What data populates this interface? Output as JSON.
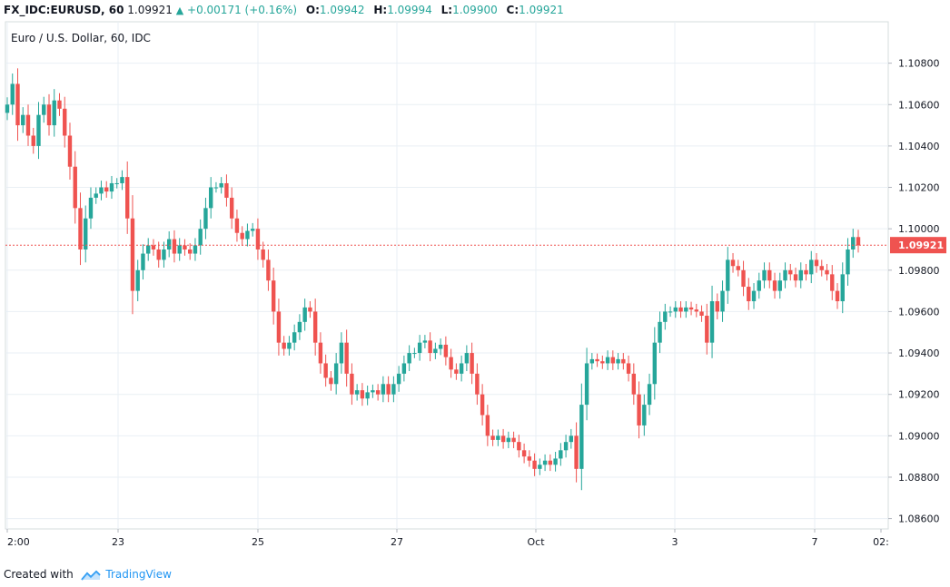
{
  "header": {
    "symbol": "FX_IDC:EURUSD, 60",
    "last": "1.09921",
    "change": "+0.00171 (+0.16%)",
    "o_label": "O:",
    "o_val": "1.09942",
    "h_label": "H:",
    "h_val": "1.09994",
    "l_label": "L:",
    "l_val": "1.09900",
    "c_label": "C:",
    "c_val": "1.09921"
  },
  "footer": {
    "created_with": "Created with",
    "brand": "TradingView"
  },
  "colors": {
    "up": "#26a69a",
    "down": "#ef5350",
    "price_line": "#ef5350",
    "grid": "#e9eff4"
  },
  "chart_data": {
    "type": "candlestick",
    "title": "Euro / U.S. Dollar, 60, IDC",
    "ylim": [
      1.0855,
      1.11
    ],
    "y_ticks": [
      "1.10800",
      "1.10600",
      "1.10400",
      "1.10200",
      "1.10000",
      "1.09800",
      "1.09600",
      "1.09400",
      "1.09200",
      "1.09000",
      "1.08800",
      "1.08600"
    ],
    "x_ticks": [
      "2:00",
      "23",
      "25",
      "27",
      "Oct",
      "3",
      "7",
      "02:"
    ],
    "last_price": "1.09921",
    "grid": true,
    "series": [
      {
        "closes": [
          1.106,
          1.107,
          1.105,
          1.1055,
          1.1045,
          1.104,
          1.1055,
          1.106,
          1.105,
          1.1062,
          1.1058,
          1.1045,
          1.103,
          1.101,
          1.099,
          1.1005,
          1.1015,
          1.1017,
          1.102,
          1.1018,
          1.1022,
          1.1022,
          1.1025,
          1.1005,
          1.097,
          1.098,
          1.0988,
          1.0992,
          1.099,
          1.0985,
          1.099,
          1.0995,
          1.0988,
          1.0992,
          1.099,
          1.0988,
          1.0992,
          1.1,
          1.101,
          1.102,
          1.102,
          1.1022,
          1.1015,
          1.1005,
          1.0998,
          1.0995,
          1.0999,
          1.1,
          1.099,
          1.0985,
          1.0975,
          1.096,
          1.0945,
          1.0942,
          1.0945,
          1.095,
          1.0955,
          1.0962,
          1.096,
          1.0945,
          1.0935,
          1.0928,
          1.0925,
          1.0935,
          1.0945,
          1.093,
          1.092,
          1.0922,
          1.0918,
          1.0921,
          1.0922,
          1.092,
          1.0925,
          1.092,
          1.0925,
          1.093,
          1.0935,
          1.094,
          1.094,
          1.0945,
          1.0946,
          1.094,
          1.0942,
          1.0944,
          1.0938,
          1.0932,
          1.093,
          1.0935,
          1.094,
          1.093,
          1.092,
          1.091,
          1.09,
          1.0898,
          1.09,
          1.0897,
          1.0899,
          1.0897,
          1.0893,
          1.089,
          1.0888,
          1.0884,
          1.0886,
          1.0888,
          1.0886,
          1.0889,
          1.0893,
          1.0897,
          1.09,
          1.0884,
          1.0915,
          1.0935,
          1.0937,
          1.0936,
          1.0935,
          1.0938,
          1.0935,
          1.0937,
          1.0935,
          1.093,
          1.092,
          1.0905,
          1.0915,
          1.0925,
          1.0945,
          1.0955,
          1.096,
          1.096,
          1.0962,
          1.096,
          1.0962,
          1.0961,
          1.096,
          1.0958,
          1.0945,
          1.0965,
          1.096,
          1.097,
          1.0985,
          1.0982,
          1.098,
          1.0972,
          1.0965,
          1.097,
          1.0975,
          1.098,
          1.0975,
          1.097,
          1.0975,
          1.098,
          1.0978,
          1.0975,
          1.098,
          1.0978,
          1.0985,
          1.0982,
          1.098,
          1.0978,
          1.097,
          1.0965,
          1.0978,
          1.099,
          1.0996,
          1.0992
        ]
      }
    ]
  }
}
